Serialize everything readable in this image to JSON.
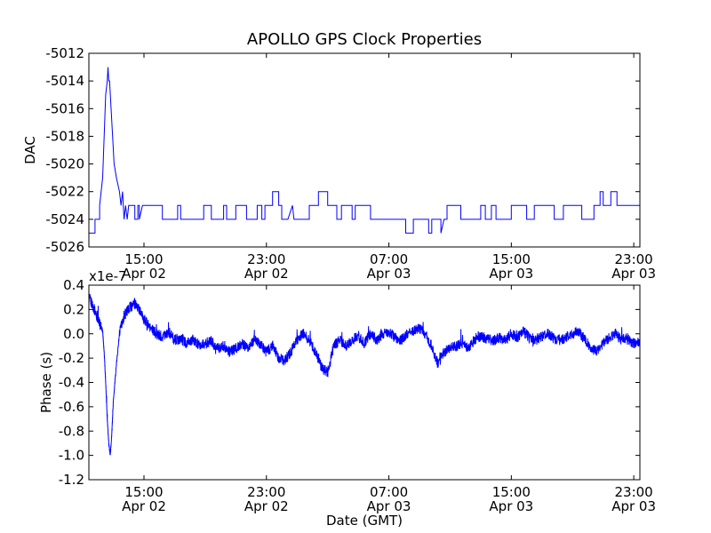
{
  "title": "APOLLO GPS Clock Properties",
  "line_color": "#0000ff",
  "chart_data": [
    {
      "id": "dac",
      "type": "line",
      "ylabel": "DAC",
      "xlabel": "",
      "x_unit": "hours since 2012-04-02 11:24 GMT",
      "xlim": [
        0,
        36
      ],
      "ylim": [
        -5026,
        -5012
      ],
      "yticks": [
        -5026,
        -5024,
        -5022,
        -5020,
        -5018,
        -5016,
        -5014,
        -5012
      ],
      "ytick_labels": [
        "-5026",
        "-5024",
        "-5022",
        "-5020",
        "-5018",
        "-5016",
        "-5014",
        "-5012"
      ],
      "xticks": [
        3.6,
        11.6,
        19.6,
        27.6,
        35.6
      ],
      "xtick_labels": [
        [
          "15:00",
          "Apr 02"
        ],
        [
          "23:00",
          "Apr 02"
        ],
        [
          "07:00",
          "Apr 03"
        ],
        [
          "15:00",
          "Apr 03"
        ],
        [
          "23:00",
          "Apr 03"
        ]
      ],
      "series": [
        {
          "name": "DAC",
          "x": [
            0,
            0.4,
            0.4,
            0.7,
            0.7,
            0.9,
            1.0,
            1.1,
            1.2,
            1.25,
            1.3,
            1.35,
            1.45,
            1.55,
            1.65,
            1.8,
            2.0,
            2.1,
            2.2,
            2.3,
            2.4,
            2.5,
            2.6,
            2.8,
            3.0,
            3.0,
            3.2,
            3.2,
            3.3,
            3.3,
            3.5,
            4.8,
            4.8,
            5.8,
            5.8,
            6.0,
            6.0,
            7.5,
            7.5,
            8.0,
            8.0,
            8.8,
            8.8,
            9.0,
            9.0,
            9.6,
            9.6,
            10.3,
            10.3,
            11.0,
            11.0,
            11.3,
            11.3,
            11.5,
            11.5,
            12.0,
            12.0,
            12.4,
            12.4,
            12.6,
            12.6,
            13.0,
            13.3,
            13.3,
            13.4,
            14.4,
            14.4,
            15.0,
            15.0,
            15.6,
            15.6,
            16.2,
            16.2,
            16.5,
            16.5,
            17.2,
            17.2,
            17.4,
            17.4,
            18.4,
            18.4,
            20.7,
            20.7,
            21.2,
            21.2,
            22.2,
            22.2,
            22.4,
            22.4,
            23.0,
            23.0,
            23.2,
            23.4,
            23.4,
            24.3,
            24.3,
            25.6,
            25.6,
            25.9,
            25.9,
            26.3,
            26.3,
            26.6,
            26.6,
            27.6,
            27.6,
            28.6,
            28.6,
            29.1,
            29.1,
            30.4,
            30.4,
            31.0,
            31.0,
            32.2,
            32.2,
            33.0,
            33.0,
            33.4,
            33.4,
            33.6,
            33.6,
            34.1,
            34.1,
            34.5,
            34.5,
            36.0
          ],
          "y": [
            -5025,
            -5025,
            -5024,
            -5024,
            -5023,
            -5021,
            -5018,
            -5015,
            -5014,
            -5013,
            -5014,
            -5014,
            -5016,
            -5018,
            -5020,
            -5021,
            -5022,
            -5023,
            -5022,
            -5024,
            -5023,
            -5024,
            -5023,
            -5023,
            -5023,
            -5024,
            -5024,
            -5023,
            -5023,
            -5024,
            -5023,
            -5023,
            -5024,
            -5024,
            -5023,
            -5023,
            -5024,
            -5024,
            -5023,
            -5023,
            -5024,
            -5024,
            -5023,
            -5023,
            -5024,
            -5024,
            -5023,
            -5023,
            -5024,
            -5024,
            -5023,
            -5023,
            -5024,
            -5024,
            -5023,
            -5023,
            -5022,
            -5022,
            -5023,
            -5023,
            -5024,
            -5024,
            -5023,
            -5023,
            -5024,
            -5024,
            -5023,
            -5023,
            -5022,
            -5022,
            -5023,
            -5023,
            -5024,
            -5024,
            -5023,
            -5023,
            -5024,
            -5024,
            -5023,
            -5023,
            -5024,
            -5024,
            -5025,
            -5025,
            -5024,
            -5024,
            -5025,
            -5025,
            -5024,
            -5024,
            -5025,
            -5024,
            -5024,
            -5023,
            -5023,
            -5024,
            -5024,
            -5023,
            -5023,
            -5024,
            -5024,
            -5023,
            -5023,
            -5024,
            -5024,
            -5023,
            -5023,
            -5024,
            -5024,
            -5023,
            -5023,
            -5024,
            -5024,
            -5023,
            -5023,
            -5024,
            -5024,
            -5023,
            -5023,
            -5022,
            -5022,
            -5023,
            -5023,
            -5022,
            -5022,
            -5023,
            -5023
          ]
        }
      ]
    },
    {
      "id": "phase",
      "type": "line",
      "ylabel": "Phase (s)",
      "xlabel": "Date (GMT)",
      "scale_label": "x1e-7",
      "x_unit": "hours since 2012-04-02 11:24 GMT",
      "xlim": [
        0,
        36
      ],
      "ylim": [
        -1.2,
        0.4
      ],
      "yticks": [
        -1.2,
        -1.0,
        -0.8,
        -0.6,
        -0.4,
        -0.2,
        0.0,
        0.2,
        0.4
      ],
      "ytick_labels": [
        "-1.2",
        "-1.0",
        "-0.8",
        "-0.6",
        "-0.4",
        "-0.2",
        "0.0",
        "0.2",
        "0.4"
      ],
      "xticks": [
        3.6,
        11.6,
        19.6,
        27.6,
        35.6
      ],
      "xtick_labels": [
        [
          "15:00",
          "Apr 02"
        ],
        [
          "23:00",
          "Apr 02"
        ],
        [
          "07:00",
          "Apr 03"
        ],
        [
          "15:00",
          "Apr 03"
        ],
        [
          "23:00",
          "Apr 03"
        ]
      ],
      "series": [
        {
          "name": "Phase",
          "x": [
            0,
            0.3,
            0.6,
            0.9,
            1.0,
            1.1,
            1.2,
            1.3,
            1.4,
            1.5,
            1.6,
            1.8,
            2.0,
            2.3,
            2.7,
            3.0,
            3.3,
            3.6,
            4.0,
            4.4,
            4.8,
            5.2,
            5.6,
            6.0,
            6.4,
            6.8,
            7.2,
            7.6,
            8.0,
            8.4,
            8.8,
            9.2,
            9.6,
            10.0,
            10.4,
            10.8,
            11.2,
            11.6,
            12.0,
            12.4,
            12.8,
            13.2,
            13.6,
            14.0,
            14.4,
            14.8,
            15.2,
            15.6,
            16.0,
            16.4,
            16.8,
            17.2,
            17.6,
            18.0,
            18.4,
            18.8,
            19.2,
            19.6,
            20.0,
            20.4,
            20.8,
            21.2,
            21.6,
            22.0,
            22.4,
            22.8,
            23.2,
            23.6,
            24.0,
            24.4,
            24.8,
            25.2,
            25.6,
            26.0,
            26.4,
            26.8,
            27.2,
            27.6,
            28.0,
            28.4,
            28.8,
            29.2,
            29.6,
            30.0,
            30.4,
            30.8,
            31.2,
            31.6,
            32.0,
            32.4,
            32.8,
            33.2,
            33.6,
            34.0,
            34.4,
            34.8,
            35.2,
            35.6,
            36.0
          ],
          "y": [
            0.3,
            0.22,
            0.12,
            0.02,
            -0.15,
            -0.4,
            -0.7,
            -0.9,
            -1.0,
            -0.82,
            -0.55,
            -0.25,
            0.0,
            0.15,
            0.22,
            0.25,
            0.2,
            0.12,
            0.05,
            0.0,
            -0.02,
            0.02,
            -0.05,
            -0.04,
            -0.08,
            -0.05,
            -0.1,
            -0.08,
            -0.06,
            -0.12,
            -0.1,
            -0.15,
            -0.12,
            -0.08,
            -0.12,
            -0.05,
            -0.08,
            -0.15,
            -0.1,
            -0.2,
            -0.22,
            -0.15,
            -0.05,
            0.0,
            -0.05,
            -0.15,
            -0.28,
            -0.32,
            -0.1,
            -0.05,
            -0.1,
            -0.05,
            -0.02,
            -0.08,
            0.0,
            -0.05,
            0.0,
            0.02,
            -0.03,
            -0.05,
            0.0,
            0.03,
            0.04,
            0.0,
            -0.1,
            -0.25,
            -0.15,
            -0.12,
            -0.1,
            -0.08,
            -0.12,
            -0.05,
            -0.02,
            -0.04,
            -0.06,
            -0.03,
            -0.05,
            0.0,
            -0.03,
            0.02,
            -0.03,
            -0.05,
            -0.02,
            0.0,
            -0.04,
            -0.05,
            -0.03,
            0.0,
            0.02,
            -0.05,
            -0.12,
            -0.15,
            -0.08,
            -0.03,
            0.0,
            -0.05,
            -0.04,
            -0.08,
            -0.07
          ]
        }
      ]
    }
  ]
}
